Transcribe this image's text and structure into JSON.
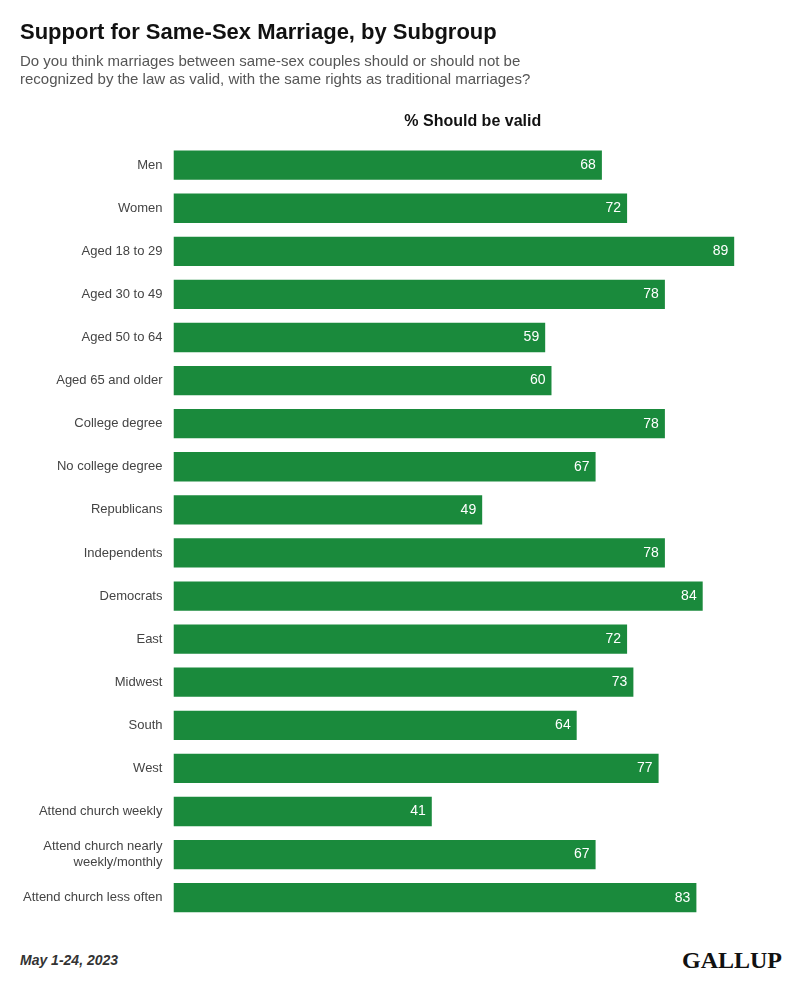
{
  "chart_data": {
    "type": "bar",
    "orientation": "horizontal",
    "title": "Support for Same-Sex Marriage, by Subgroup",
    "subtitle": [
      "Do you think marriages between same-sex couples should or should not be",
      "recognized by the law as valid, with the same rights as traditional marriages?"
    ],
    "x_label": "% Should be valid",
    "categories": [
      "Men",
      "Women",
      "Aged 18 to 29",
      "Aged 30 to 49",
      "Aged 50 to 64",
      "Aged 65 and older",
      "College degree",
      "No college degree",
      "Republicans",
      "Independents",
      "Democrats",
      "East",
      "Midwest",
      "South",
      "West",
      "Attend church weekly",
      "Attend church nearly\nweekly/monthly",
      "Attend church less often"
    ],
    "values": [
      68,
      72,
      89,
      78,
      59,
      60,
      78,
      67,
      49,
      78,
      84,
      72,
      73,
      64,
      77,
      41,
      67,
      83
    ],
    "color": "#1a8a3c",
    "xlim": [
      0,
      95
    ],
    "grid": false,
    "data_labels": true,
    "tick_labels": "y",
    "annotations": [
      "May 1-24, 2023",
      "GALLUP"
    ]
  }
}
